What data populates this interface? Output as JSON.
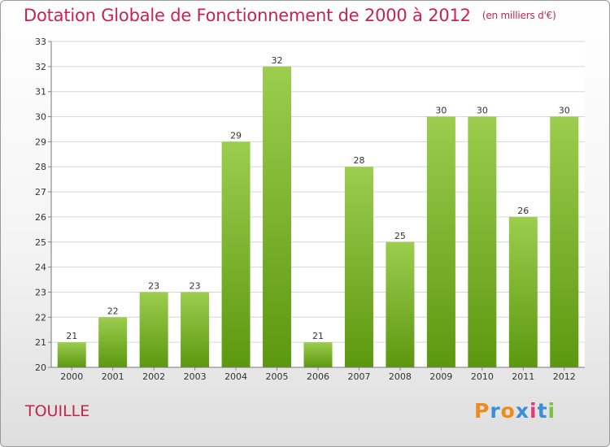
{
  "header": {
    "title": "Dotation Globale de Fonctionnement de 2000 à 2012",
    "subtitle": "(en milliers d'€)"
  },
  "footer": {
    "commune": "TOUILLE",
    "logo_text": "Proxiti"
  },
  "colors": {
    "title": "#c8224e",
    "bar_top": "#9ccd4e",
    "bar_bottom": "#5c980f",
    "grid": "#d6d6d6"
  },
  "chart_data": {
    "type": "bar",
    "categories": [
      "2000",
      "2001",
      "2002",
      "2003",
      "2004",
      "2005",
      "2006",
      "2007",
      "2008",
      "2009",
      "2010",
      "2011",
      "2012"
    ],
    "values": [
      21,
      22,
      23,
      23,
      29,
      32,
      21,
      28,
      25,
      30,
      30,
      26,
      30
    ],
    "title": "Dotation Globale de Fonctionnement de 2000 à 2012",
    "subtitle": "(en milliers d'€)",
    "xlabel": "",
    "ylabel": "",
    "ylim": [
      20,
      33
    ],
    "yticks": [
      20,
      21,
      22,
      23,
      24,
      25,
      26,
      27,
      28,
      29,
      30,
      31,
      32,
      33
    ],
    "grid": true,
    "legend": "none"
  }
}
